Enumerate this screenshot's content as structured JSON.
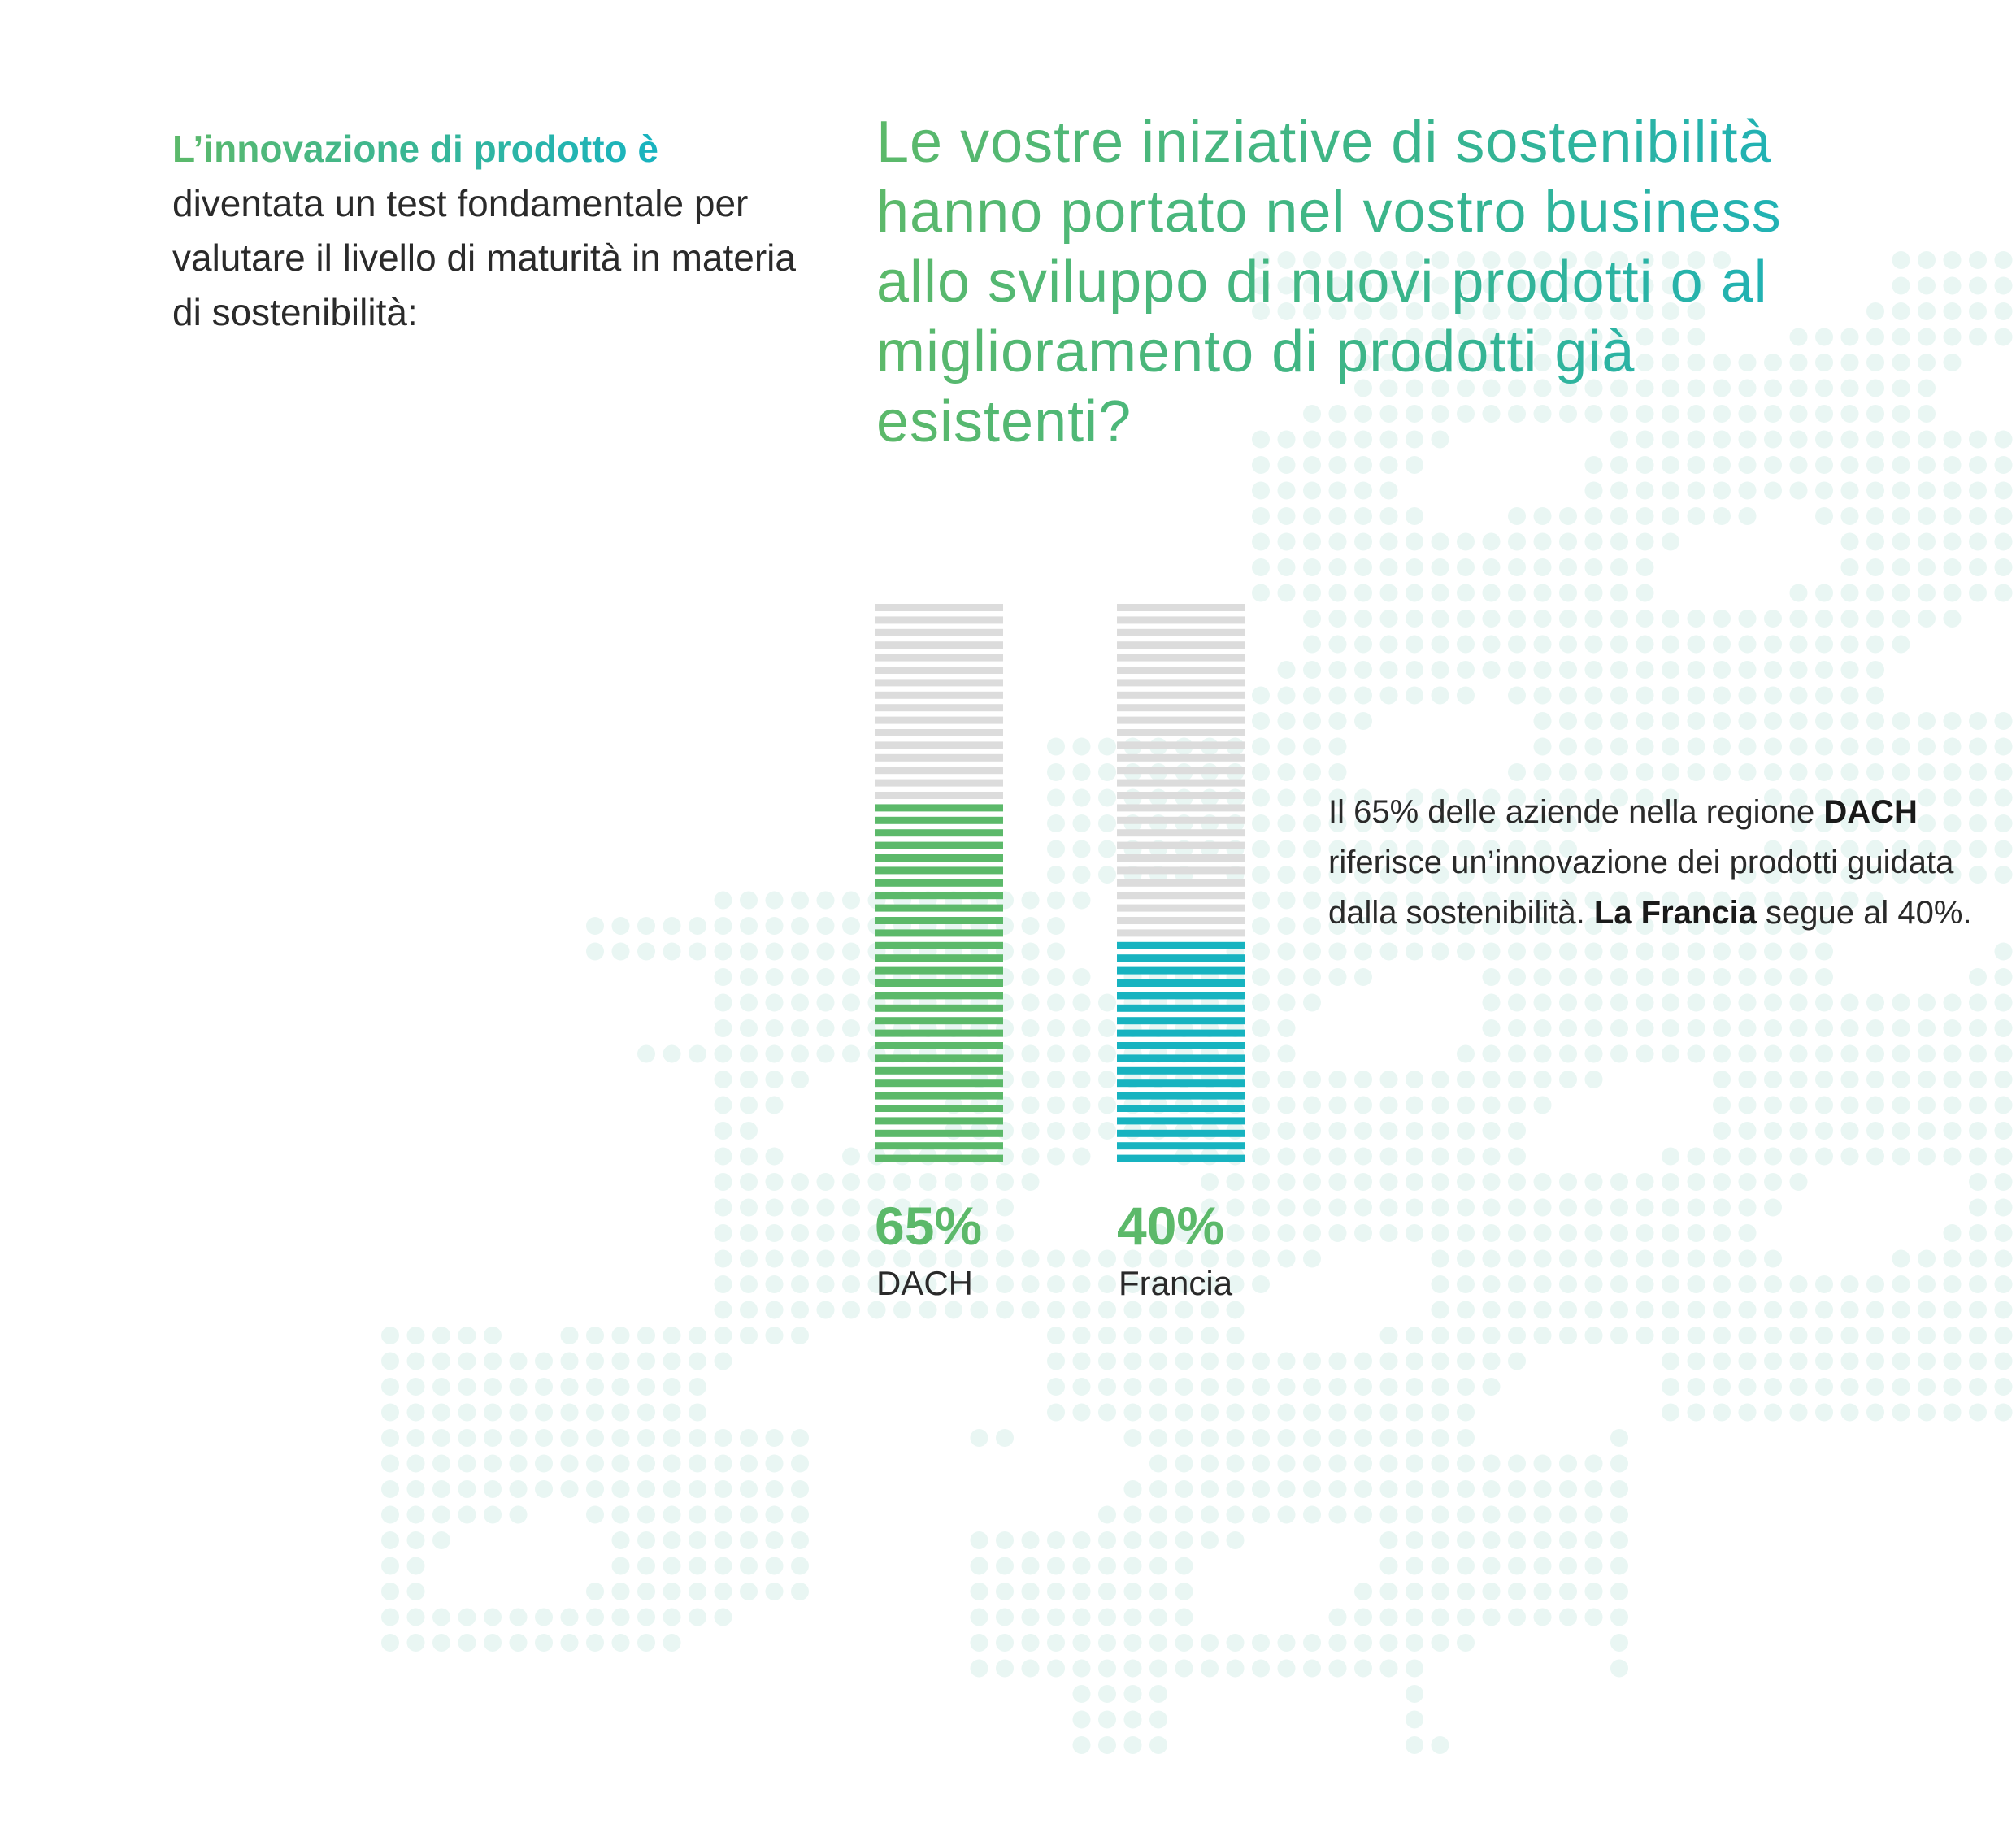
{
  "intro": {
    "lead": "L’innovazione di prodotto è",
    "rest": "diventata un test fondamentale per valutare il livello di maturità in materia di sostenibilità:"
  },
  "question": "Le vostre iniziative di sostenibilità hanno portato nel vostro business allo sviluppo di nuovi prodotti o al miglioramento di prodotti già esistenti?",
  "note": {
    "p1": "Il 65% delle aziende nella regione ",
    "b1": "DACH",
    "p2": " riferisce un’innovazione dei prodotti guidata dalla sostenibilità. ",
    "b2": "La Francia",
    "p3": " segue al 40%."
  },
  "colors": {
    "dach": "#5cb96a",
    "francia": "#17b3c0",
    "empty": "#dcdcdc",
    "map_dots": "#e9f6f3"
  },
  "chart_data": {
    "type": "bar",
    "categories": [
      "DACH",
      "Francia"
    ],
    "values": [
      65,
      40
    ],
    "value_labels": [
      "65%",
      "40%"
    ],
    "ylim": [
      0,
      100
    ],
    "unit": "%",
    "grid": false,
    "legend": "none"
  }
}
